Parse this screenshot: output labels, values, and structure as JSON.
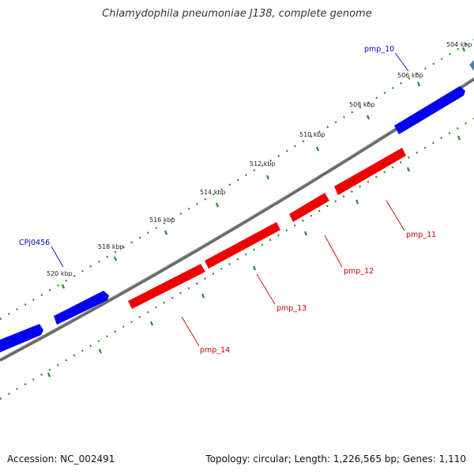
{
  "title": "Chlamydophila pneumoniae J138, complete genome",
  "footer": {
    "accession": "Accession: NC_002491",
    "summary": "Topology: circular; Length: 1,226,565 bp; Genes: 1,110"
  },
  "colors": {
    "forward_gene": "#0000ee",
    "reverse_gene": "#ee0000",
    "backbone": "#777777",
    "ticks": "#228b22",
    "partial_gene": "#4682b4"
  },
  "ticks": [
    "504 kbp",
    "506 kbp",
    "508 kbp",
    "510 kbp",
    "512 kbp",
    "514 kbp",
    "516 kbp",
    "518 kbp",
    "520 kbp"
  ],
  "labels": {
    "forward": [
      "pmp_10",
      "CPj0456"
    ],
    "reverse": [
      "pmp_11",
      "pmp_12",
      "pmp_13",
      "pmp_14"
    ]
  }
}
